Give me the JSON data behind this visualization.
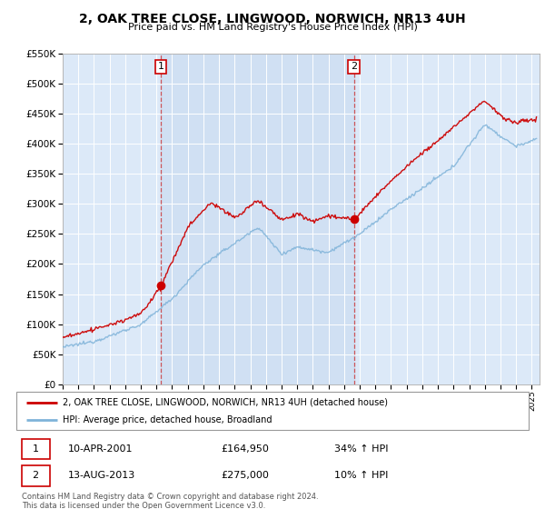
{
  "title": "2, OAK TREE CLOSE, LINGWOOD, NORWICH, NR13 4UH",
  "subtitle": "Price paid vs. HM Land Registry's House Price Index (HPI)",
  "legend_line1": "2, OAK TREE CLOSE, LINGWOOD, NORWICH, NR13 4UH (detached house)",
  "legend_line2": "HPI: Average price, detached house, Broadland",
  "transaction1_date": "10-APR-2001",
  "transaction1_price": "£164,950",
  "transaction1_hpi": "34% ↑ HPI",
  "transaction2_date": "13-AUG-2013",
  "transaction2_price": "£275,000",
  "transaction2_hpi": "10% ↑ HPI",
  "footer": "Contains HM Land Registry data © Crown copyright and database right 2024.\nThis data is licensed under the Open Government Licence v3.0.",
  "ylim": [
    0,
    550000
  ],
  "yticks": [
    0,
    50000,
    100000,
    150000,
    200000,
    250000,
    300000,
    350000,
    400000,
    450000,
    500000,
    550000
  ],
  "background_color": "#dce9f8",
  "red_line_color": "#cc0000",
  "blue_line_color": "#7fb3d9",
  "transaction1_x": 2001.27,
  "transaction2_x": 2013.62,
  "transaction1_y": 164950,
  "transaction2_y": 275000,
  "xmin": 1995.0,
  "xmax": 2025.5
}
